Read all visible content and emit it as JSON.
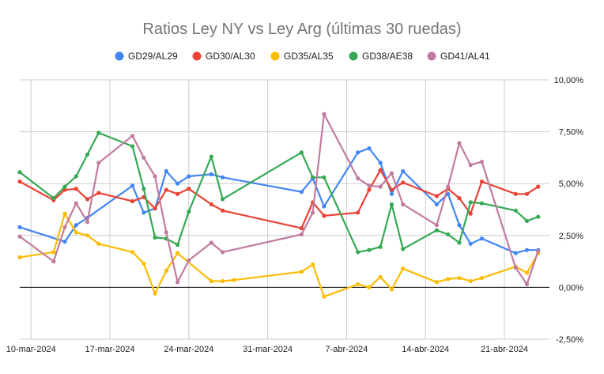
{
  "chart_data": {
    "type": "line",
    "title": "Ratios Ley NY vs Ley Arg (últimas 30 ruedas)",
    "xlabel": "",
    "ylabel": "",
    "ylim": [
      -2.5,
      10
    ],
    "yticks": [
      10,
      7.5,
      5,
      2.5,
      0,
      -2.5
    ],
    "ytick_labels": [
      "10,00%",
      "7,50%",
      "5,00%",
      "2,50%",
      "0,00%",
      "-2,50%"
    ],
    "xlim": [
      "2024-03-09",
      "2024-04-25"
    ],
    "xticks": [
      "2024-03-10",
      "2024-03-17",
      "2024-03-24",
      "2024-03-31",
      "2024-04-07",
      "2024-04-14",
      "2024-04-21"
    ],
    "xtick_labels": [
      "10-mar-2024",
      "17-mar-2024",
      "24-mar-2024",
      "31-mar-2024",
      "7-abr-2024",
      "14-abr-2024",
      "21-abr-2024"
    ],
    "grid": true,
    "legend_position": "top",
    "x": [
      "2024-03-09",
      "2024-03-12",
      "2024-03-13",
      "2024-03-14",
      "2024-03-15",
      "2024-03-16",
      "2024-03-19",
      "2024-03-20",
      "2024-03-21",
      "2024-03-22",
      "2024-03-23",
      "2024-03-24",
      "2024-03-26",
      "2024-03-27",
      "2024-03-28",
      "2024-04-03",
      "2024-04-04",
      "2024-04-05",
      "2024-04-08",
      "2024-04-09",
      "2024-04-10",
      "2024-04-11",
      "2024-04-12",
      "2024-04-15",
      "2024-04-16",
      "2024-04-17",
      "2024-04-18",
      "2024-04-19",
      "2024-04-22",
      "2024-04-23",
      "2024-04-24"
    ],
    "series": [
      {
        "name": "GD29/AL29",
        "color": "#4285f4",
        "values": [
          2.9,
          null,
          2.2,
          3.0,
          3.35,
          null,
          4.9,
          3.6,
          3.8,
          5.6,
          5.0,
          5.35,
          5.45,
          5.3,
          null,
          4.6,
          5.25,
          3.9,
          6.5,
          6.7,
          6.0,
          4.5,
          5.6,
          4.0,
          4.5,
          3.0,
          2.1,
          2.35,
          1.65,
          1.8,
          1.8
        ]
      },
      {
        "name": "GD30/AL30",
        "color": "#ea4335",
        "values": [
          5.1,
          4.2,
          4.7,
          4.75,
          4.25,
          4.55,
          4.15,
          4.35,
          3.8,
          4.7,
          4.5,
          4.75,
          4.0,
          3.7,
          null,
          2.85,
          4.1,
          3.45,
          3.6,
          4.7,
          5.65,
          4.7,
          5.05,
          4.4,
          4.75,
          4.3,
          3.55,
          5.1,
          4.5,
          4.5,
          4.85
        ]
      },
      {
        "name": "GD35/AL35",
        "color": "#fbbc04",
        "values": [
          1.45,
          1.7,
          3.55,
          2.65,
          2.5,
          2.1,
          1.7,
          1.15,
          -0.3,
          0.8,
          1.65,
          null,
          0.3,
          0.3,
          0.35,
          0.75,
          1.1,
          -0.45,
          0.15,
          0.0,
          0.5,
          -0.1,
          0.9,
          0.25,
          0.4,
          0.45,
          0.3,
          0.45,
          1.0,
          0.7,
          1.65
        ]
      },
      {
        "name": "GD38/AE38",
        "color": "#34a853",
        "values": [
          5.55,
          4.3,
          4.85,
          5.35,
          6.4,
          7.45,
          6.8,
          4.75,
          2.4,
          2.35,
          2.05,
          3.65,
          6.3,
          4.25,
          null,
          6.5,
          5.3,
          5.3,
          1.7,
          1.8,
          1.95,
          4.0,
          1.85,
          2.75,
          2.55,
          2.15,
          4.1,
          4.05,
          3.7,
          3.2,
          3.4
        ]
      },
      {
        "name": "GD41/AL41",
        "color": "#c27ba0",
        "values": [
          2.45,
          1.25,
          2.9,
          4.05,
          3.15,
          6.0,
          7.3,
          6.25,
          5.35,
          2.65,
          0.25,
          1.3,
          2.15,
          1.7,
          null,
          2.55,
          3.6,
          8.35,
          5.25,
          4.9,
          4.85,
          5.5,
          4.0,
          3.0,
          4.85,
          6.95,
          5.9,
          6.05,
          0.95,
          0.15,
          1.75
        ]
      }
    ]
  }
}
